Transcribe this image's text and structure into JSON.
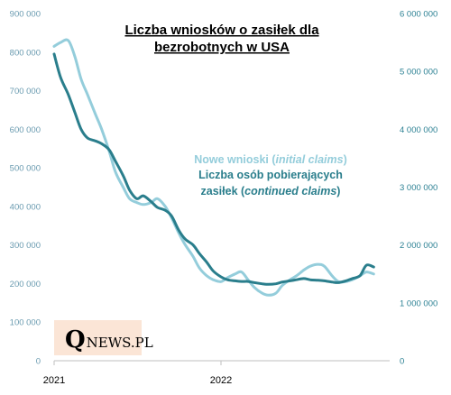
{
  "chart_data": {
    "type": "line",
    "title_lines": [
      "Liczba wniosków  o zasiłek dla",
      "bezrobotnych  w USA"
    ],
    "x_ticks": [
      "2021",
      "2022"
    ],
    "y_left": {
      "min": 0,
      "max": 900000,
      "ticks": [
        "0",
        "100 000",
        "200 000",
        "300 000",
        "400 000",
        "500 000",
        "600 000",
        "700 000",
        "800 000",
        "900 000"
      ]
    },
    "y_right": {
      "min": 0,
      "max": 6000000,
      "ticks": [
        "0",
        "1 000 000",
        "2 000 000",
        "3 000 000",
        "4 000 000",
        "5 000 000",
        "6 000 000"
      ]
    },
    "legend": {
      "initial_plain": "Nowe wnioski (",
      "initial_italic": "initial claims",
      "initial_close": ")",
      "continued_line1": "Liczba osób pobierających",
      "continued_plain": "zasiłek (",
      "continued_italic": "continued claims",
      "continued_close": ")"
    },
    "series": [
      {
        "axis": "left",
        "color": "#94cddb",
        "x": [
          "2021-01-01",
          "2021-01-15",
          "2021-02-01",
          "2021-02-15",
          "2021-03-01",
          "2021-03-15",
          "2021-04-01",
          "2021-04-15",
          "2021-05-01",
          "2021-05-15",
          "2021-06-01",
          "2021-06-15",
          "2021-07-01",
          "2021-07-15",
          "2021-08-01",
          "2021-08-15",
          "2021-09-01",
          "2021-09-15",
          "2021-10-01",
          "2021-10-15",
          "2021-11-01",
          "2021-11-15",
          "2021-12-01",
          "2021-12-15",
          "2022-01-01",
          "2022-01-15",
          "2022-02-01",
          "2022-02-15",
          "2022-03-01",
          "2022-03-15",
          "2022-04-01",
          "2022-04-15",
          "2022-05-01",
          "2022-05-15",
          "2022-06-01",
          "2022-06-15",
          "2022-07-01",
          "2022-07-15",
          "2022-08-01",
          "2022-08-15",
          "2022-09-01",
          "2022-09-15",
          "2022-10-01",
          "2022-10-15",
          "2022-11-01",
          "2022-11-15",
          "2022-12-01"
        ],
        "values": [
          815000,
          825000,
          830000,
          790000,
          730000,
          690000,
          640000,
          600000,
          545000,
          490000,
          450000,
          420000,
          410000,
          405000,
          410000,
          420000,
          400000,
          370000,
          330000,
          300000,
          270000,
          240000,
          220000,
          210000,
          205000,
          215000,
          225000,
          230000,
          210000,
          190000,
          175000,
          170000,
          175000,
          195000,
          210000,
          220000,
          235000,
          245000,
          250000,
          245000,
          220000,
          205000,
          205000,
          210000,
          220000,
          230000,
          225000
        ]
      },
      {
        "axis": "right",
        "color": "#2a7e8c",
        "x": [
          "2021-01-01",
          "2021-01-15",
          "2021-02-01",
          "2021-02-15",
          "2021-03-01",
          "2021-03-15",
          "2021-04-01",
          "2021-04-15",
          "2021-05-01",
          "2021-05-15",
          "2021-06-01",
          "2021-06-15",
          "2021-07-01",
          "2021-07-15",
          "2021-08-01",
          "2021-08-15",
          "2021-09-01",
          "2021-09-15",
          "2021-10-01",
          "2021-10-15",
          "2021-11-01",
          "2021-11-15",
          "2021-12-01",
          "2021-12-15",
          "2022-01-01",
          "2022-01-15",
          "2022-02-01",
          "2022-02-15",
          "2022-03-01",
          "2022-03-15",
          "2022-04-01",
          "2022-04-15",
          "2022-05-01",
          "2022-05-15",
          "2022-06-01",
          "2022-06-15",
          "2022-07-01",
          "2022-07-15",
          "2022-08-01",
          "2022-08-15",
          "2022-09-01",
          "2022-09-15",
          "2022-10-01",
          "2022-10-15",
          "2022-11-01",
          "2022-11-15",
          "2022-12-01"
        ],
        "values": [
          5300000,
          4900000,
          4600000,
          4300000,
          4000000,
          3850000,
          3800000,
          3750000,
          3650000,
          3450000,
          3200000,
          2950000,
          2800000,
          2850000,
          2750000,
          2650000,
          2600000,
          2500000,
          2250000,
          2100000,
          2000000,
          1850000,
          1700000,
          1550000,
          1450000,
          1400000,
          1380000,
          1370000,
          1370000,
          1350000,
          1330000,
          1320000,
          1330000,
          1360000,
          1380000,
          1400000,
          1420000,
          1400000,
          1390000,
          1380000,
          1360000,
          1350000,
          1380000,
          1420000,
          1470000,
          1650000,
          1620000
        ]
      }
    ]
  },
  "logo": {
    "q": "Q",
    "rest": "NEWS.PL"
  }
}
